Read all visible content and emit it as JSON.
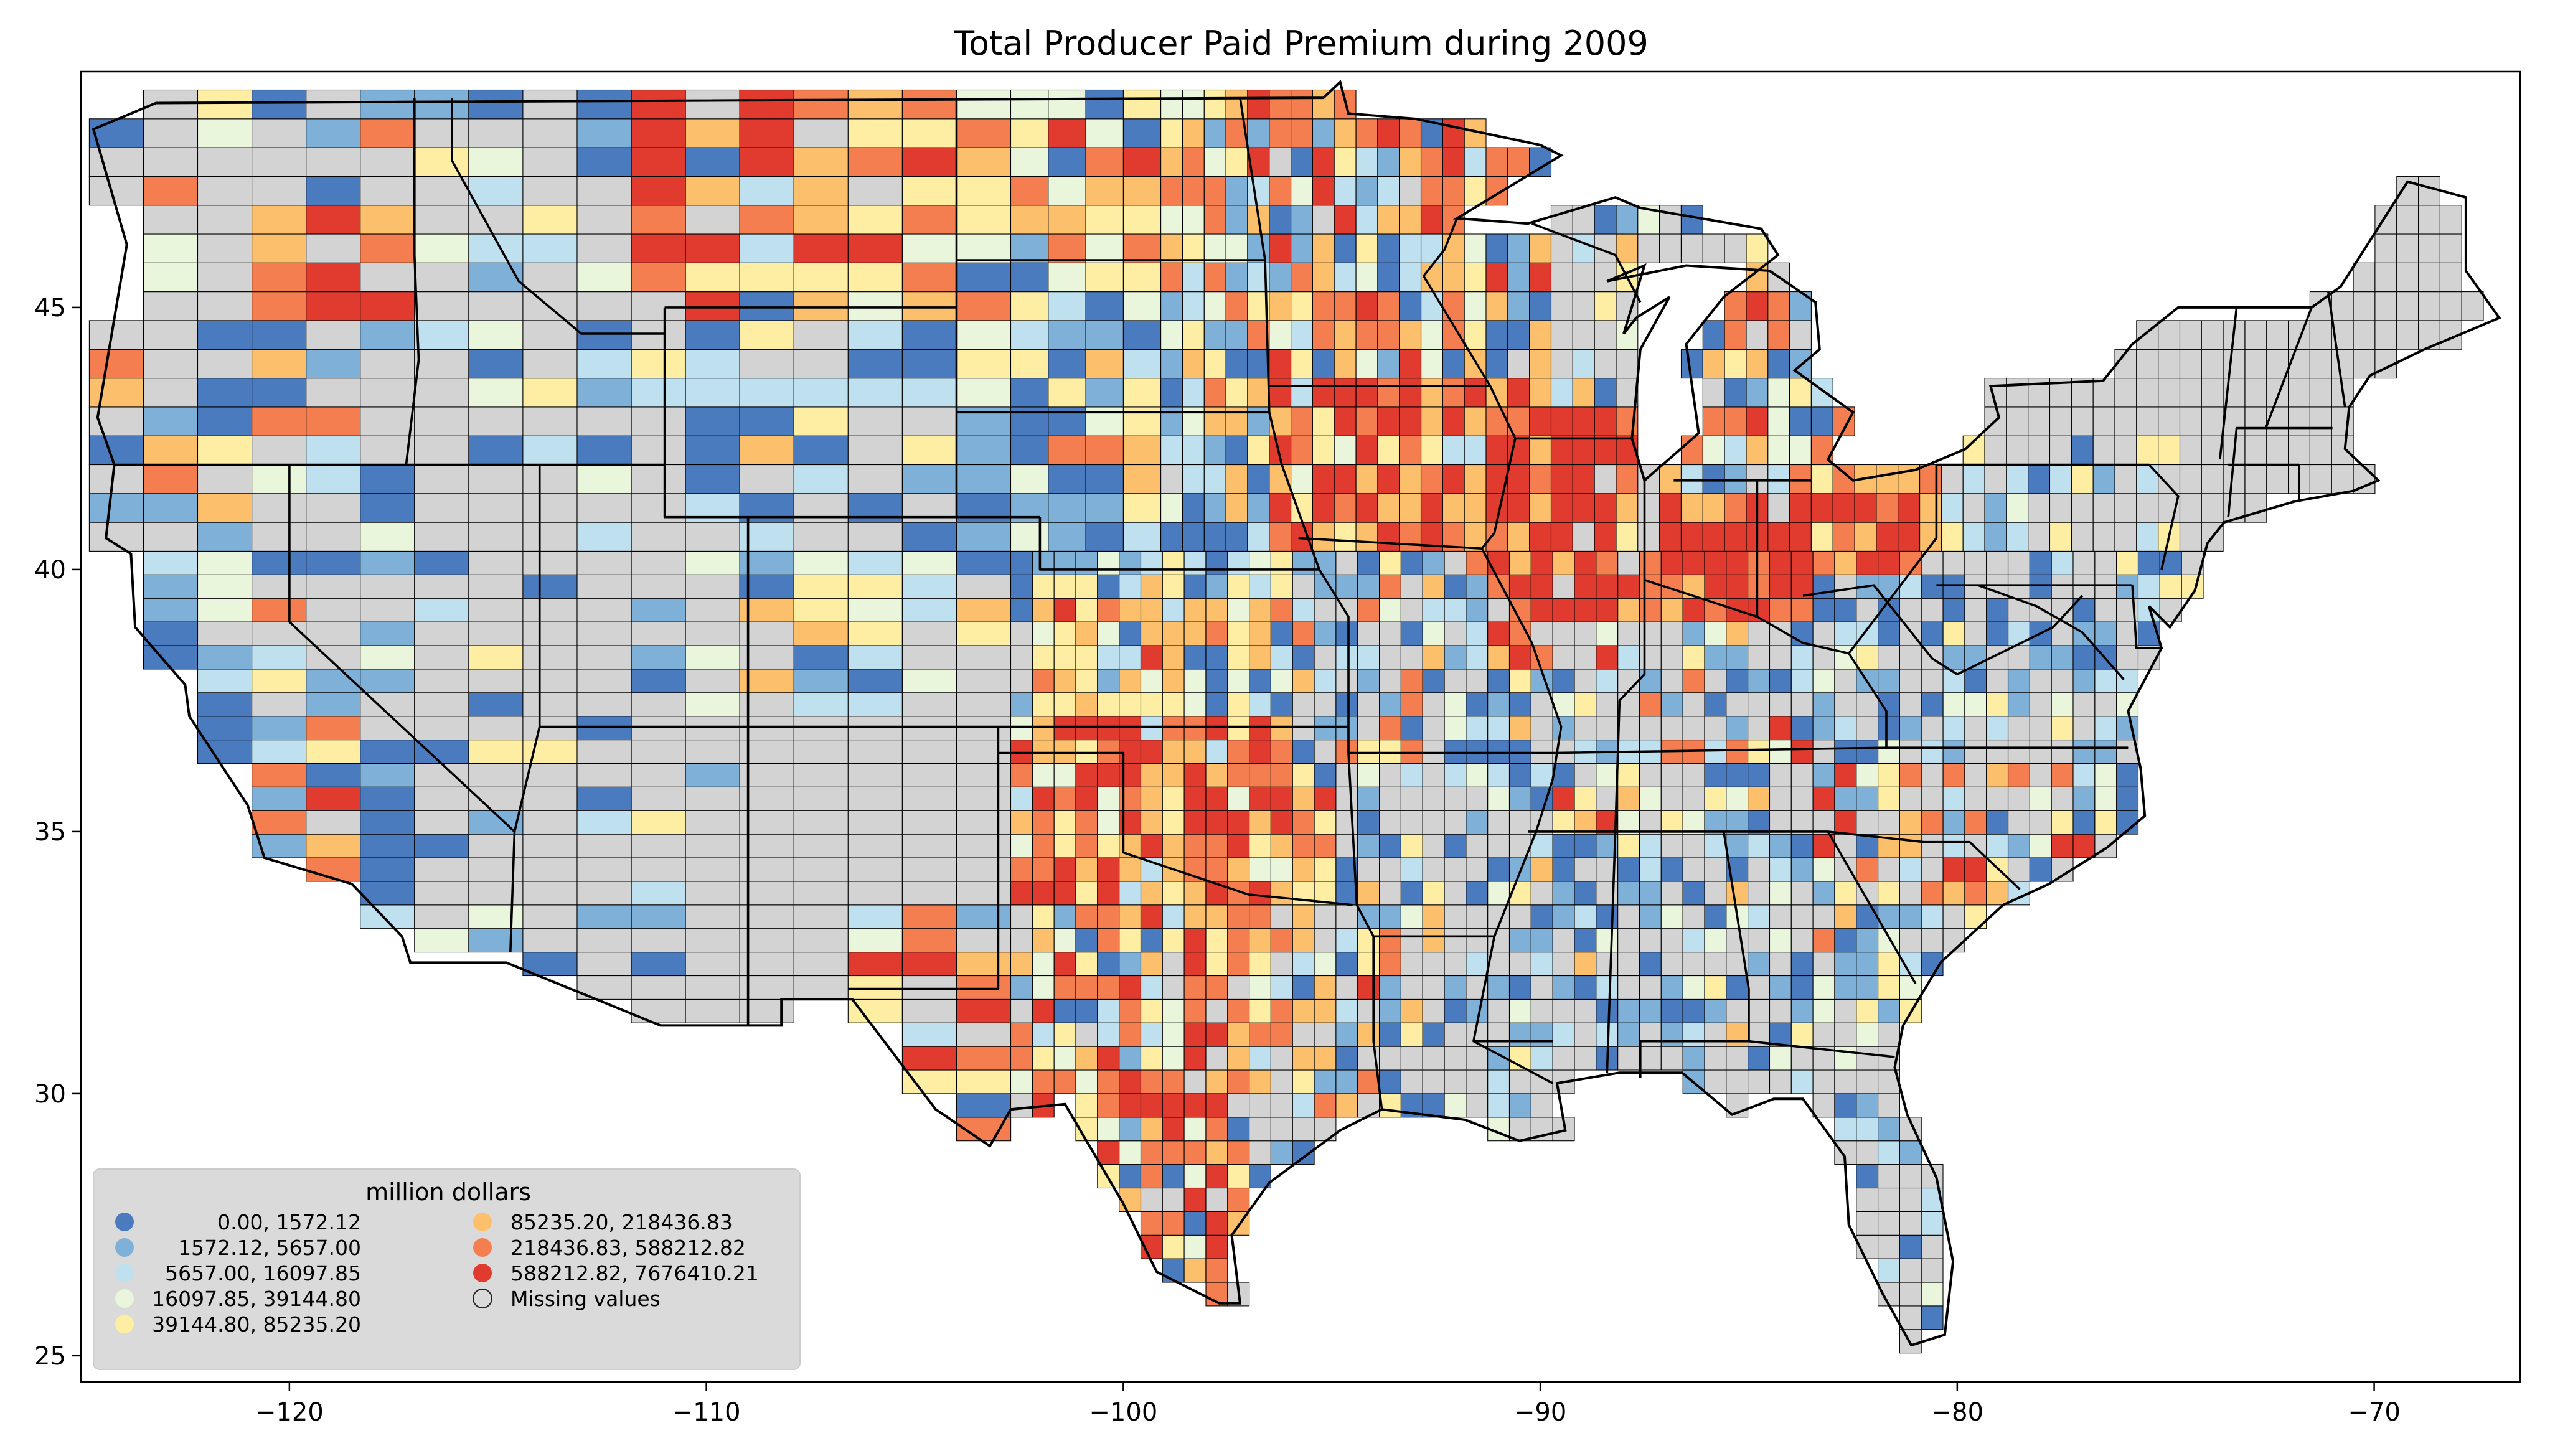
{
  "title": "Total Producer Paid Premium during 2009",
  "axes": {
    "x_ticks": [
      {
        "value": -120,
        "label": "−120"
      },
      {
        "value": -110,
        "label": "−110"
      },
      {
        "value": -100,
        "label": "−100"
      },
      {
        "value": -90,
        "label": "−90"
      },
      {
        "value": -80,
        "label": "−80"
      },
      {
        "value": -70,
        "label": "−70"
      }
    ],
    "y_ticks": [
      {
        "value": 25,
        "label": "25"
      },
      {
        "value": 30,
        "label": "30"
      },
      {
        "value": 35,
        "label": "35"
      },
      {
        "value": 40,
        "label": "40"
      },
      {
        "value": 45,
        "label": "45"
      }
    ],
    "xlim": [
      -125,
      -66.5
    ],
    "ylim": [
      24.5,
      49.5
    ]
  },
  "legend": {
    "title": "million dollars",
    "placement": "lower-left",
    "items": [
      {
        "label": "0.00,    1572.12",
        "color": "#4a7bbf"
      },
      {
        "label": "1572.12,    5657.00",
        "color": "#7fb1d8"
      },
      {
        "label": "5657.00,   16097.85",
        "color": "#bfe0ee"
      },
      {
        "label": "16097.85,   39144.80",
        "color": "#eaf6dc"
      },
      {
        "label": "39144.80,   85235.20",
        "color": "#fdeea4"
      },
      {
        "label": "85235.20,  218436.83",
        "color": "#fcc06c"
      },
      {
        "label": "218436.83,  588212.82",
        "color": "#f47e4f"
      },
      {
        "label": "588212.82, 7676410.21",
        "color": "#e03b2e"
      },
      {
        "label": "Missing values",
        "color": "#d3d3d3"
      }
    ]
  },
  "map_colors": {
    "missing": "#d3d3d3",
    "border": "#000000"
  }
}
